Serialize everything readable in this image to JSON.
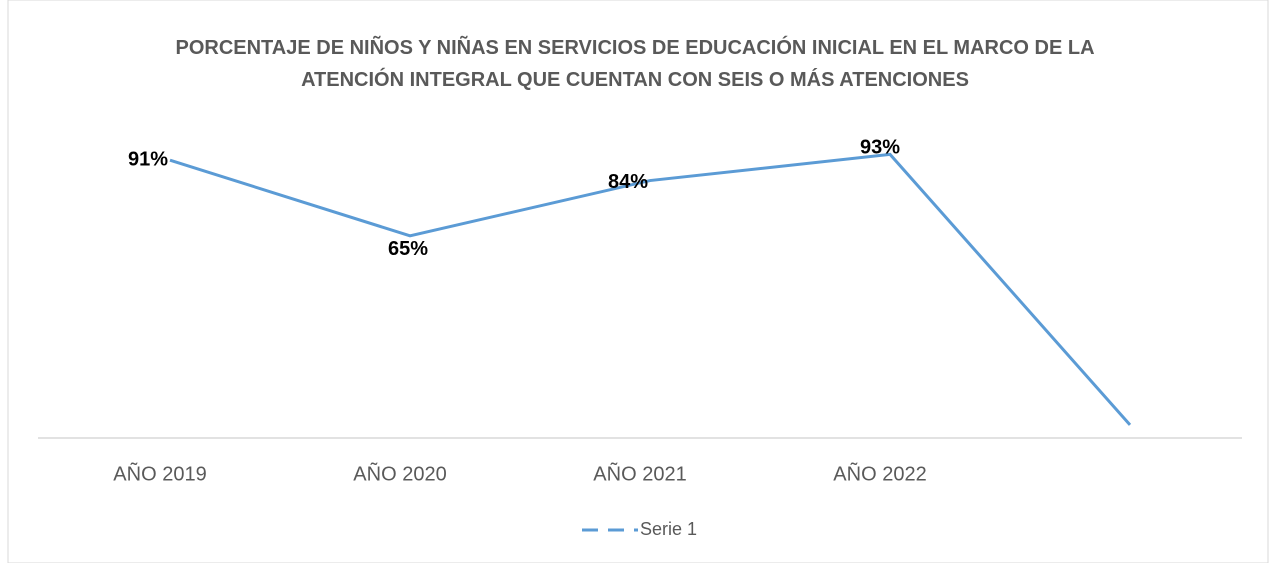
{
  "chart_data": {
    "type": "line",
    "title": "PORCENTAJE DE NIÑOS Y NIÑAS EN SERVICIOS DE EDUCACIÓN INICIAL EN EL MARCO DE LA ATENCIÓN INTEGRAL QUE CUENTAN CON SEIS O MÁS ATENCIONES",
    "categories": [
      "AÑO 2019",
      "AÑO 2020",
      "AÑO 2021",
      "AÑO 2022",
      null
    ],
    "series": [
      {
        "name": "Serie 1",
        "color": "#5b9bd5",
        "values": [
          91,
          65,
          84,
          93,
          0
        ],
        "value_labels": [
          "91%",
          "65%",
          "84%",
          "93%",
          null
        ]
      }
    ],
    "ylim": [
      -4.5,
      100
    ],
    "legend": "bottom",
    "grid": false
  }
}
